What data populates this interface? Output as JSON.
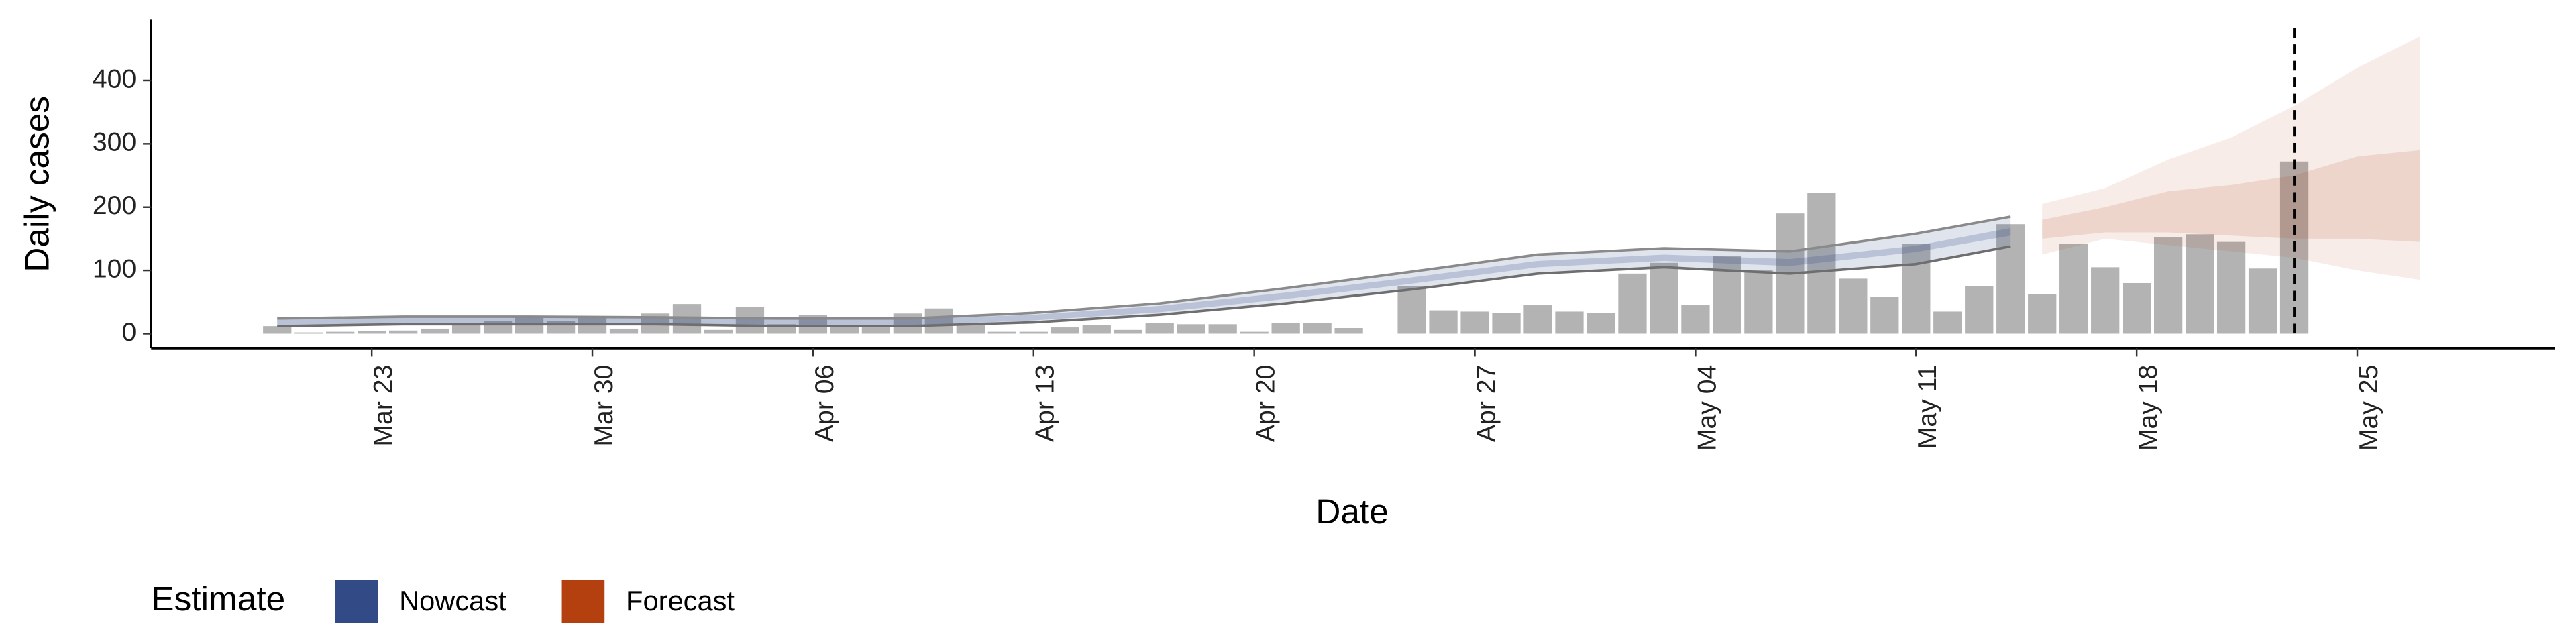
{
  "chart_data": {
    "type": "bar",
    "ylabel": "Daily cases",
    "xlabel": "Date",
    "x": [
      "Mar 20",
      "Mar 21",
      "Mar 22",
      "Mar 23",
      "Mar 24",
      "Mar 25",
      "Mar 26",
      "Mar 27",
      "Mar 28",
      "Mar 29",
      "Mar 30",
      "Mar 31",
      "Apr 1",
      "Apr 2",
      "Apr 3",
      "Apr 4",
      "Apr 5",
      "Apr 6",
      "Apr 7",
      "Apr 8",
      "Apr 9",
      "Apr 10",
      "Apr 11",
      "Apr 12",
      "Apr 13",
      "Apr 14",
      "Apr 15",
      "Apr 16",
      "Apr 17",
      "Apr 18",
      "Apr 19",
      "Apr 20",
      "Apr 21",
      "Apr 22",
      "Apr 23",
      "Apr 24",
      "Apr 25",
      "Apr 26",
      "Apr 27",
      "Apr 28",
      "Apr 29",
      "Apr 30",
      "May 1",
      "May 2",
      "May 3",
      "May 4",
      "May 5",
      "May 6",
      "May 7",
      "May 8",
      "May 9",
      "May 10",
      "May 11",
      "May 12",
      "May 13",
      "May 14",
      "May 15",
      "May 16",
      "May 17",
      "May 18",
      "May 19",
      "May 20",
      "May 21",
      "May 22",
      "May 23"
    ],
    "values": [
      12,
      2,
      3,
      4,
      5,
      8,
      15,
      20,
      28,
      20,
      28,
      8,
      32,
      47,
      6,
      42,
      15,
      30,
      12,
      10,
      32,
      40,
      15,
      3,
      3,
      10,
      14,
      6,
      17,
      15,
      15,
      3,
      17,
      17,
      9,
      0,
      75,
      37,
      35,
      33,
      45,
      35,
      33,
      95,
      112,
      45,
      123,
      100,
      190,
      222,
      87,
      58,
      142,
      35,
      75,
      173,
      62,
      142,
      105,
      80,
      152,
      157,
      145,
      103,
      272
    ],
    "color": "#b3b3b3",
    "bands": [
      {
        "name": "Nowcast",
        "color": "#324b87",
        "x": [
          "Mar 20",
          "Mar 24",
          "Mar 28",
          "Apr 1",
          "Apr 5",
          "Apr 9",
          "Apr 13",
          "Apr 17",
          "Apr 21",
          "Apr 25",
          "Apr 29",
          "May 3",
          "May 7",
          "May 11",
          "May 14"
        ],
        "outer_lower": [
          12,
          15,
          15,
          15,
          12,
          12,
          18,
          30,
          48,
          70,
          95,
          105,
          95,
          110,
          138
        ],
        "outer_upper": [
          24,
          27,
          27,
          26,
          24,
          24,
          33,
          48,
          72,
          98,
          125,
          135,
          130,
          158,
          185
        ],
        "inner_lower": [
          14,
          16,
          16,
          16,
          13,
          13,
          21,
          34,
          55,
          79,
          105,
          115,
          107,
          129,
          155
        ],
        "inner_upper": [
          22,
          26,
          26,
          25,
          23,
          23,
          30,
          44,
          65,
          89,
          115,
          125,
          118,
          139,
          167
        ]
      },
      {
        "name": "Forecast",
        "color": "#b5400f",
        "x": [
          "May 15",
          "May 17",
          "May 19",
          "May 21",
          "May 23",
          "May 25",
          "May 27"
        ],
        "outer_lower": [
          125,
          150,
          140,
          130,
          120,
          100,
          85
        ],
        "outer_upper": [
          205,
          230,
          275,
          310,
          360,
          420,
          470
        ],
        "inner_lower": [
          150,
          160,
          160,
          155,
          150,
          150,
          145
        ],
        "inner_upper": [
          180,
          200,
          225,
          235,
          250,
          280,
          290
        ]
      }
    ],
    "vline": "May 23",
    "legend_title": "Estimate",
    "xlim": [
      "Mar 16",
      "May 31"
    ],
    "xticks": [
      "Mar 23",
      "Mar 30",
      "Apr 06",
      "Apr 13",
      "Apr 20",
      "Apr 27",
      "May 04",
      "May 11",
      "May 18",
      "May 25"
    ],
    "ylim": [
      -23,
      496
    ],
    "yticks": [
      0,
      100,
      200,
      300,
      400
    ]
  }
}
